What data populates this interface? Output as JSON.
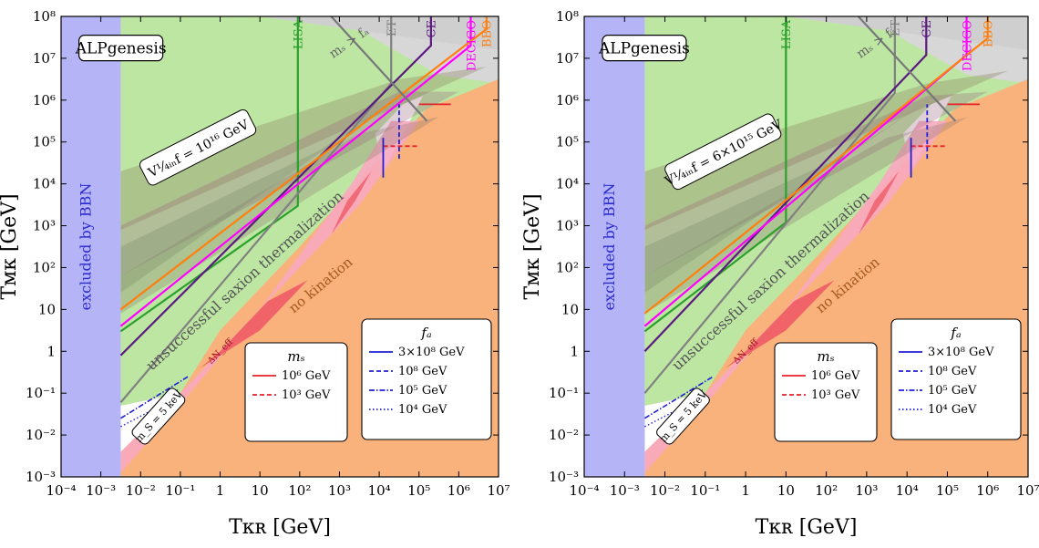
{
  "chart_data": [
    {
      "type": "area",
      "xlabel": "T_KR [GeV]",
      "ylabel": "T_MK [GeV]",
      "xscale": "log",
      "yscale": "log",
      "xlim": [
        0.0001,
        10000000
      ],
      "ylim": [
        0.001,
        100000000
      ],
      "x_tick_labels": [
        "10⁻⁴",
        "10⁻³",
        "10⁻²",
        "10⁻¹",
        "1",
        "10",
        "10²",
        "10³",
        "10⁴",
        "10⁵",
        "10⁶",
        "10⁷"
      ],
      "y_tick_labels": [
        "10⁻³",
        "10⁻²",
        "10⁻¹",
        "1",
        "10",
        "10²",
        "10³",
        "10⁴",
        "10⁵",
        "10⁶",
        "10⁷",
        "10⁸"
      ],
      "box_label": "ALPgenesis",
      "inflation_label": "V_inf^{1/4} = 10^{16} GeV",
      "ms_line_label": "m_S > f_a",
      "region_labels": {
        "bbn": "excluded by BBN",
        "saxion": "unsuccessful saxion thermalization",
        "no_kination": "no kination",
        "dneff": "ΔN_eff",
        "ms_min": "m_S = 5 keV"
      },
      "detectors": [
        {
          "name": "LISA",
          "color": "#2ca02c",
          "x_vertical": 90,
          "y_corner": 3000,
          "y_low": 3
        },
        {
          "name": "ET",
          "color": "#808080",
          "x_vertical": 20000,
          "y_corner": 2500000,
          "y_low": 0.06
        },
        {
          "name": "CE",
          "color": "#5a1a80",
          "x_vertical": 200000,
          "y_corner": 20000000,
          "y_low": 0.8
        },
        {
          "name": "DECIGO",
          "color": "#ff00ff",
          "x_vertical": 2000000,
          "y_corner": 20000000,
          "y_low": 4
        },
        {
          "name": "BBO",
          "color": "#ff7f0e",
          "x_vertical": 5000000,
          "y_corner": 50000000,
          "y_low": 10
        }
      ],
      "legend_ms": {
        "title": "m_S",
        "entries": [
          {
            "label": "10⁶ GeV",
            "style": "solid",
            "color": "#e8202a"
          },
          {
            "label": "10³ GeV",
            "style": "dashed",
            "color": "#e8202a"
          }
        ]
      },
      "legend_fa": {
        "title": "f_a",
        "entries": [
          {
            "label": "3×10⁸ GeV",
            "style": "solid",
            "color": "#1f1fd6"
          },
          {
            "label": "10⁸ GeV",
            "style": "dashed",
            "color": "#1f1fd6"
          },
          {
            "label": "10⁵ GeV",
            "style": "dashdot",
            "color": "#1f1fd6"
          },
          {
            "label": "10⁴ GeV",
            "style": "dotted",
            "color": "#1f1fd6"
          }
        ]
      }
    },
    {
      "type": "area",
      "xlabel": "T_KR [GeV]",
      "ylabel": "T_MK [GeV]",
      "xscale": "log",
      "yscale": "log",
      "xlim": [
        0.0001,
        10000000
      ],
      "ylim": [
        0.001,
        100000000
      ],
      "x_tick_labels": [
        "10⁻⁴",
        "10⁻³",
        "10⁻²",
        "10⁻¹",
        "1",
        "10",
        "10²",
        "10³",
        "10⁴",
        "10⁵",
        "10⁶",
        "10⁷"
      ],
      "y_tick_labels": [
        "10⁻³",
        "10⁻²",
        "10⁻¹",
        "1",
        "10",
        "10²",
        "10³",
        "10⁴",
        "10⁵",
        "10⁶",
        "10⁷",
        "10⁸"
      ],
      "box_label": "ALPgenesis",
      "inflation_label": "V_inf^{1/4} = 6×10^{15} GeV",
      "ms_line_label": "m_S > f_a",
      "region_labels": {
        "bbn": "excluded by BBN",
        "saxion": "unsuccessful saxion thermalization",
        "no_kination": "no kination",
        "dneff": "ΔN_eff",
        "ms_min": "m_S = 5 keV"
      },
      "detectors": [
        {
          "name": "LISA",
          "color": "#2ca02c",
          "x_vertical": 10,
          "y_corner": 1200,
          "y_low": 3
        },
        {
          "name": "ET",
          "color": "#808080",
          "x_vertical": 5000,
          "y_corner": 1500000,
          "y_low": 0.1
        },
        {
          "name": "CE",
          "color": "#5a1a80",
          "x_vertical": 30000,
          "y_corner": 12000000,
          "y_low": 1
        },
        {
          "name": "DECIGO",
          "color": "#ff00ff",
          "x_vertical": 300000,
          "y_corner": 12000000,
          "y_low": 4
        },
        {
          "name": "BBO",
          "color": "#ff7f0e",
          "x_vertical": 1000000,
          "y_corner": 30000000,
          "y_low": 8
        }
      ],
      "legend_ms": {
        "title": "m_S",
        "entries": [
          {
            "label": "10⁶ GeV",
            "style": "solid",
            "color": "#e8202a"
          },
          {
            "label": "10³ GeV",
            "style": "dashed",
            "color": "#e8202a"
          }
        ]
      },
      "legend_fa": {
        "title": "f_a",
        "entries": [
          {
            "label": "3×10⁸ GeV",
            "style": "solid",
            "color": "#1f1fd6"
          },
          {
            "label": "10⁸ GeV",
            "style": "dashed",
            "color": "#1f1fd6"
          },
          {
            "label": "10⁵ GeV",
            "style": "dashdot",
            "color": "#1f1fd6"
          },
          {
            "label": "10⁴ GeV",
            "style": "dotted",
            "color": "#1f1fd6"
          }
        ]
      }
    }
  ]
}
